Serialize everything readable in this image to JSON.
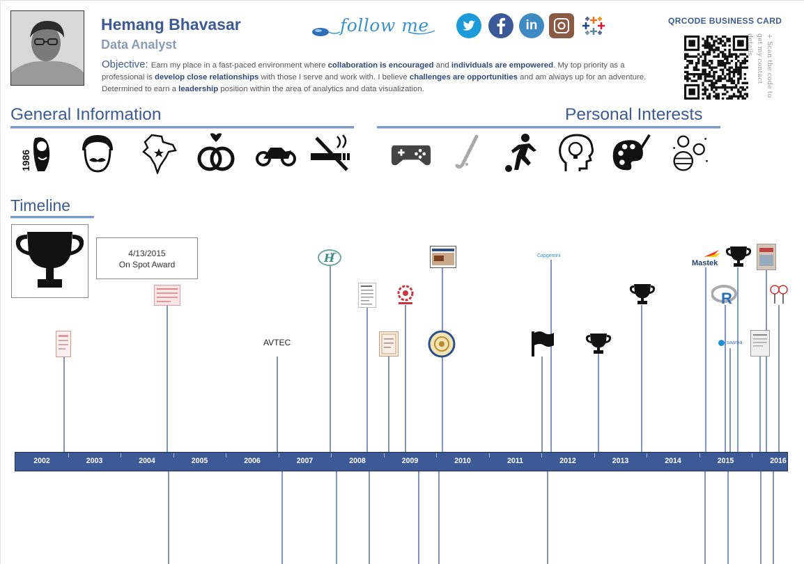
{
  "profile": {
    "name": "Hemang Bhavasar",
    "role": "Data Analyst",
    "objective_label": "Objective:",
    "objective_parts": [
      "Earn my place in a fast-paced environment where ",
      "collaboration is encouraged",
      " and ",
      "individuals are empowered",
      ". My top priority as a professional is ",
      "develop close relationships",
      " with those I serve and work with. I believe ",
      "challenges are opportunities",
      " and am always up for an adventure. Determined to earn a ",
      "leadership",
      " position within the area of analytics and data visualization."
    ]
  },
  "follow": {
    "text": "follow me",
    "social": [
      {
        "name": "twitter",
        "color": "#1d9bd8",
        "glyph": "t"
      },
      {
        "name": "facebook",
        "color": "#3b5998",
        "glyph": "f"
      },
      {
        "name": "linkedin",
        "color": "#3d8bc2",
        "glyph": "in"
      },
      {
        "name": "instagram",
        "color": "#8a5a44",
        "glyph": "◎"
      },
      {
        "name": "tableau",
        "color": "#e97627",
        "glyph": "✚"
      }
    ]
  },
  "qr": {
    "title": "QRCODE BUSINESS CARD",
    "note": "+ Scan the code to get my contact details."
  },
  "sections": {
    "general": "General Information",
    "interests": "Personal Interests",
    "timeline": "Timeline"
  },
  "general_icons": {
    "birth_year": "1986",
    "items": [
      "baby-icon",
      "face-mustache-icon",
      "india-map-icon",
      "wedding-rings-icon",
      "motorbike-icon",
      "no-smoking-icon"
    ]
  },
  "interest_icons": [
    "gamepad-icon",
    "hockey-stick-icon",
    "football-player-icon",
    "idea-head-icon",
    "art-palette-icon",
    "planets-icon"
  ],
  "timeline": {
    "years": [
      "2002",
      "2003",
      "2004",
      "2005",
      "2006",
      "2007",
      "2008",
      "2009",
      "2010",
      "2011",
      "2012",
      "2013",
      "2014",
      "2015",
      "2016"
    ],
    "tooltip": {
      "date": "4/13/2015",
      "label": "On Spot Award"
    },
    "marker_labels": {
      "avtec": "AVTEC",
      "mastek": "Mastek",
      "saama": "saama",
      "capgemini": "Capgemini",
      "r": "R"
    }
  },
  "colors": {
    "accent": "#3b5b92",
    "axis": "#3d5a96",
    "rule": "#7a9cc6"
  }
}
